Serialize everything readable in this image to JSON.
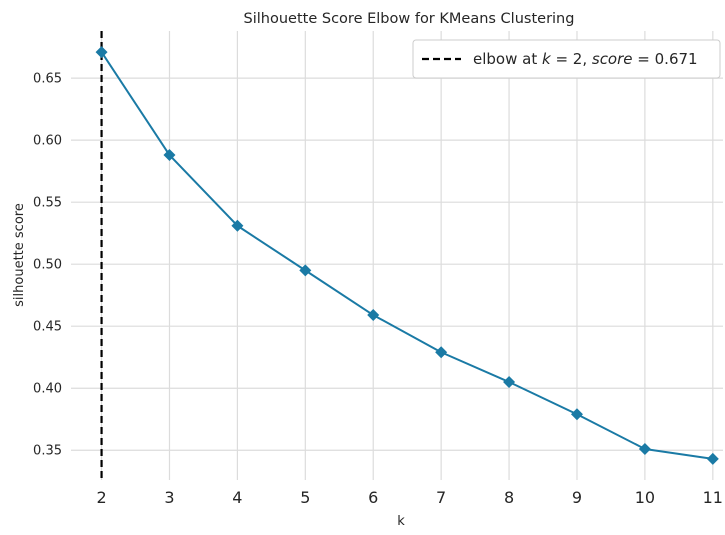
{
  "chart_data": {
    "type": "line",
    "title": "Silhouette Score Elbow for KMeans Clustering",
    "xlabel": "k",
    "ylabel": "silhouette score",
    "x": [
      2,
      3,
      4,
      5,
      6,
      7,
      8,
      9,
      10,
      11
    ],
    "series": [
      {
        "values": [
          0.671,
          0.588,
          0.531,
          0.495,
          0.459,
          0.429,
          0.405,
          0.379,
          0.351,
          0.343
        ],
        "color": "#1a7aa5",
        "marker": "diamond"
      }
    ],
    "xlim": [
      1.55,
      11.15
    ],
    "ylim": [
      0.326,
      0.688
    ],
    "x_ticks": [
      "2",
      "3",
      "4",
      "5",
      "6",
      "7",
      "8",
      "9",
      "10",
      "11"
    ],
    "y_ticks": [
      "0.35",
      "0.40",
      "0.45",
      "0.50",
      "0.55",
      "0.60",
      "0.65"
    ],
    "grid": true,
    "elbow": {
      "x": 2,
      "score": 0.671,
      "line_color": "#000000",
      "line_style": "dashed",
      "legend_prefix": "elbow at ",
      "legend_k": "k",
      "legend_mid": " = 2, ",
      "legend_score": "score",
      "legend_suffix": " = 0.671"
    },
    "legend_position": "top-right",
    "colors": {
      "grid": "#dcdcdc",
      "frame": "#cccccc",
      "text": "#262626",
      "background": "#ffffff"
    }
  }
}
